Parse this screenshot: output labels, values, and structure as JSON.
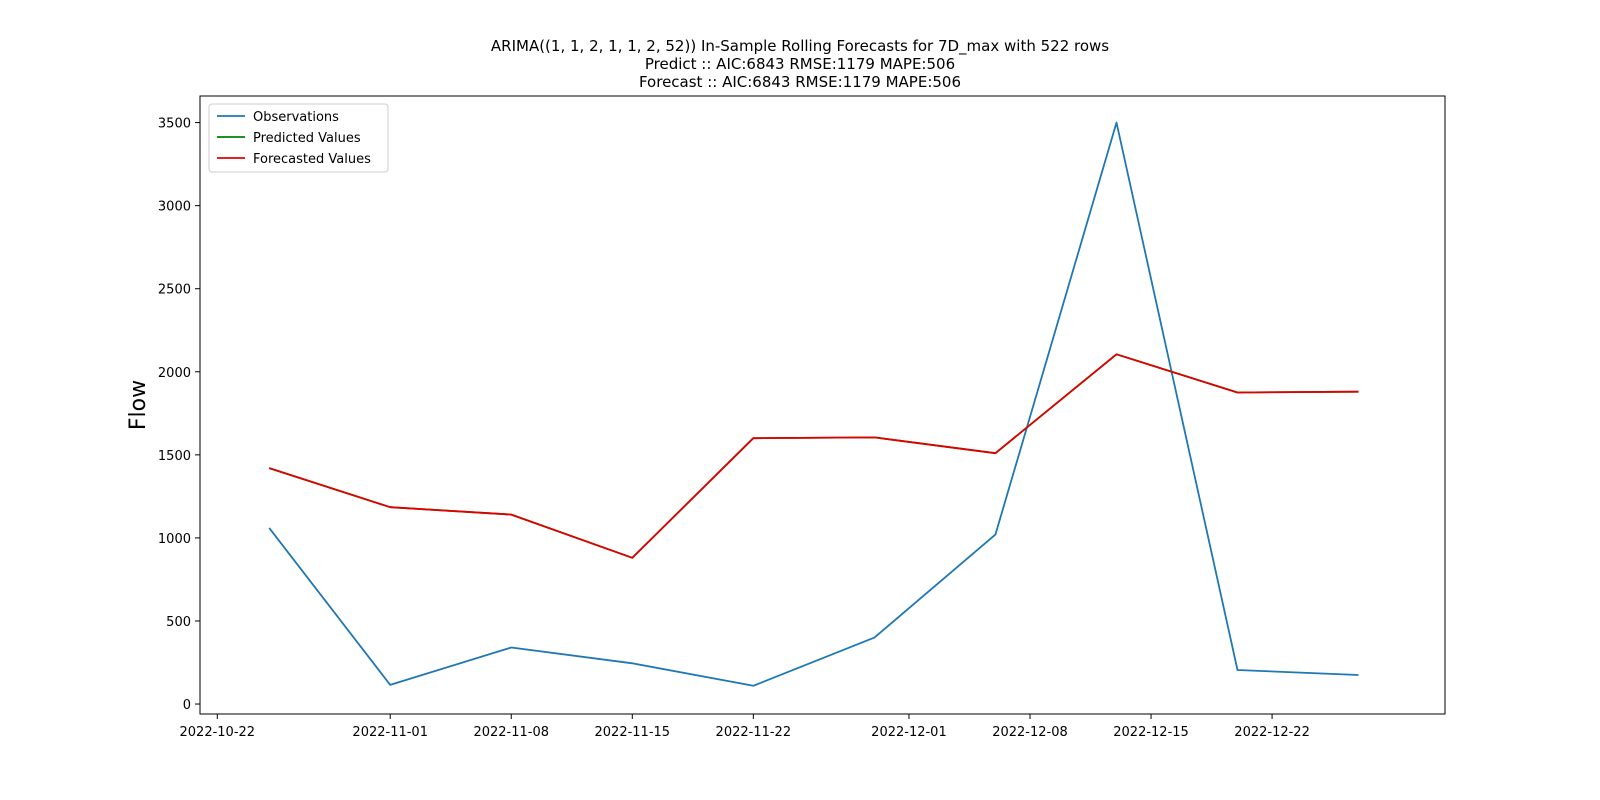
{
  "chart_data": {
    "type": "line",
    "title": "ARIMA((1, 1, 2, 1, 1, 2, 52)) In-Sample Rolling Forecasts for 7D_max with 522 rows",
    "subtitle_lines": [
      "Predict :: AIC:6843 RMSE:1179 MAPE:506",
      "Forecast :: AIC:6843 RMSE:1179 MAPE:506"
    ],
    "xlabel": "",
    "ylabel": "Flow",
    "x": [
      "2022-10-25",
      "2022-11-01",
      "2022-11-08",
      "2022-11-15",
      "2022-11-22",
      "2022-11-29",
      "2022-12-06",
      "2022-12-13",
      "2022-12-20",
      "2022-12-27"
    ],
    "x_ticks": [
      "2022-10-22",
      "2022-11-01",
      "2022-11-08",
      "2022-11-15",
      "2022-11-22",
      "2022-12-01",
      "2022-12-08",
      "2022-12-15",
      "2022-12-22"
    ],
    "xlim": [
      "2022-10-21",
      "2023-01-01"
    ],
    "y_ticks": [
      0,
      500,
      1000,
      1500,
      2000,
      2500,
      3000,
      3500
    ],
    "ylim": [
      -60,
      3660
    ],
    "grid": false,
    "legend_position": "top-left",
    "series": [
      {
        "name": "Observations",
        "color": "#1f77b4",
        "values": [
          1060,
          115,
          340,
          245,
          110,
          400,
          1020,
          3500,
          205,
          175
        ]
      },
      {
        "name": "Predicted Values",
        "color": "#008000",
        "values": [
          1420,
          1185,
          1140,
          880,
          1600,
          1605,
          1510,
          2105,
          1875,
          1880
        ]
      },
      {
        "name": "Forecasted Values",
        "color": "#e00000",
        "values": [
          1420,
          1185,
          1140,
          880,
          1600,
          1605,
          1510,
          2105,
          1875,
          1880
        ]
      }
    ]
  }
}
